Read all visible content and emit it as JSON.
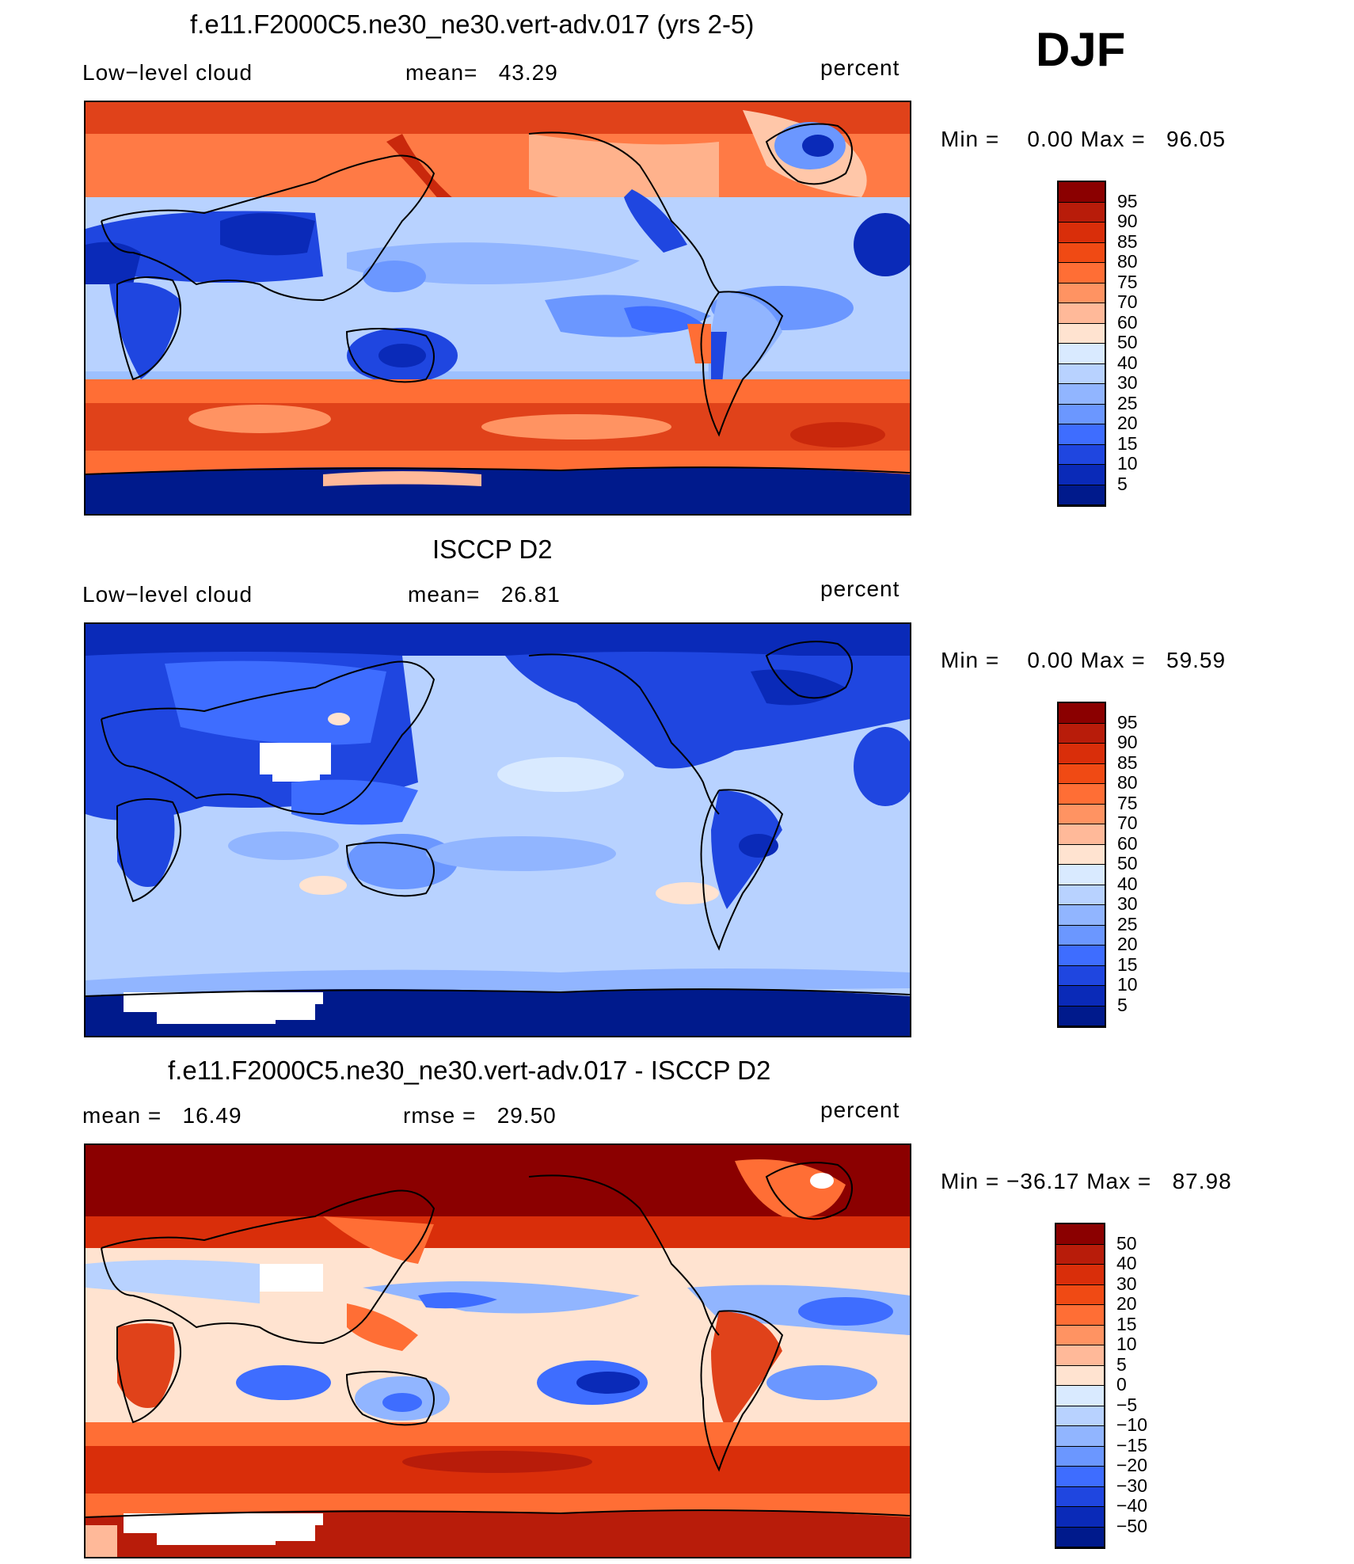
{
  "season": "DJF",
  "panels": [
    {
      "title": "f.e11.F2000C5.ne30_ne30.vert-adv.017 (yrs 2-5)",
      "left_label": "Low−level cloud",
      "center_label": "mean=   43.29",
      "right_label": "percent",
      "minmax": "Min =    0.00 Max =   96.05",
      "colorbar": {
        "labels": [
          "95",
          "90",
          "85",
          "80",
          "75",
          "70",
          "60",
          "50",
          "40",
          "30",
          "25",
          "20",
          "15",
          "10",
          "5"
        ],
        "colors": [
          "#8b0000",
          "#b81c0a",
          "#d92e0a",
          "#f04a14",
          "#ff6e35",
          "#ff9362",
          "#ffb999",
          "#ffe3d0",
          "#d9eaff",
          "#b8d2ff",
          "#91b5ff",
          "#6b97ff",
          "#3e6dff",
          "#1f46e0",
          "#0a2ab8",
          "#001a8c"
        ]
      }
    },
    {
      "title": "ISCCP D2",
      "left_label": "Low−level cloud",
      "center_label": "mean=   26.81",
      "right_label": "percent",
      "minmax": "Min =    0.00 Max =   59.59",
      "colorbar": {
        "labels": [
          "95",
          "90",
          "85",
          "80",
          "75",
          "70",
          "60",
          "50",
          "40",
          "30",
          "25",
          "20",
          "15",
          "10",
          "5"
        ],
        "colors": [
          "#8b0000",
          "#b81c0a",
          "#d92e0a",
          "#f04a14",
          "#ff6e35",
          "#ff9362",
          "#ffb999",
          "#ffe3d0",
          "#d9eaff",
          "#b8d2ff",
          "#91b5ff",
          "#6b97ff",
          "#3e6dff",
          "#1f46e0",
          "#0a2ab8",
          "#001a8c"
        ]
      }
    },
    {
      "title": "f.e11.F2000C5.ne30_ne30.vert-adv.017 - ISCCP D2",
      "left_label": "mean =   16.49",
      "center_label": "rmse =   29.50",
      "right_label": "percent",
      "minmax": "Min = −36.17 Max =   87.98",
      "colorbar": {
        "labels": [
          "50",
          "40",
          "30",
          "20",
          "15",
          "10",
          "5",
          "0",
          "−5",
          "−10",
          "−15",
          "−20",
          "−30",
          "−40",
          "−50"
        ],
        "colors": [
          "#8b0000",
          "#b81c0a",
          "#d92e0a",
          "#f04a14",
          "#ff6e35",
          "#ff9362",
          "#ffb999",
          "#ffe3d0",
          "#d9eaff",
          "#b8d2ff",
          "#91b5ff",
          "#6b97ff",
          "#3e6dff",
          "#1f46e0",
          "#0a2ab8",
          "#001a8c"
        ]
      }
    }
  ]
}
